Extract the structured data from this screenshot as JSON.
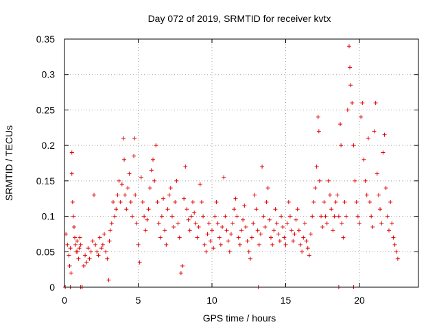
{
  "chart_data": {
    "type": "scatter",
    "title": "Day 072 of 2019, SRMTID for receiver kvtx",
    "xlabel": "GPS time / hours",
    "ylabel": "SRMTID / TECUs",
    "xlim": [
      0,
      24
    ],
    "ylim": [
      0,
      0.35
    ],
    "xticks": [
      0,
      5,
      10,
      15,
      20
    ],
    "xtick_labels": [
      "0",
      "5",
      "10",
      "15",
      "20"
    ],
    "yticks": [
      0,
      0.05,
      0.1,
      0.15,
      0.2,
      0.25,
      0.3,
      0.35
    ],
    "ytick_labels": [
      "0",
      "0.05",
      "0.1",
      "0.15",
      "0.2",
      "0.25",
      "0.3",
      "0.35"
    ],
    "grid": true,
    "marker": "+",
    "color": "#e00000",
    "series": [
      {
        "name": "SRMTID",
        "points": [
          [
            0.1,
            0.075
          ],
          [
            0.2,
            0.06
          ],
          [
            0.3,
            0.045
          ],
          [
            0.35,
            0.03
          ],
          [
            0.4,
            0.055
          ],
          [
            0.45,
            0.02
          ],
          [
            0.5,
            0.19
          ],
          [
            0.5,
            0.16
          ],
          [
            0.55,
            0.12
          ],
          [
            0.6,
            0.1
          ],
          [
            0.65,
            0.085
          ],
          [
            0.7,
            0.07
          ],
          [
            0.75,
            0.06
          ],
          [
            0.8,
            0.05
          ],
          [
            0.85,
            0.065
          ],
          [
            0.9,
            0.05
          ],
          [
            0.95,
            0.04
          ],
          [
            1.0,
            0.055
          ],
          [
            1.05,
            0.07
          ],
          [
            1.1,
            0.06
          ],
          [
            1.3,
            0.03
          ],
          [
            1.4,
            0.045
          ],
          [
            1.5,
            0.035
          ],
          [
            1.6,
            0.055
          ],
          [
            1.7,
            0.04
          ],
          [
            1.8,
            0.05
          ],
          [
            1.9,
            0.065
          ],
          [
            2.0,
            0.13
          ],
          [
            2.1,
            0.06
          ],
          [
            2.2,
            0.05
          ],
          [
            2.3,
            0.045
          ],
          [
            2.4,
            0.07
          ],
          [
            2.5,
            0.055
          ],
          [
            2.6,
            0.06
          ],
          [
            2.7,
            0.075
          ],
          [
            2.8,
            0.05
          ],
          [
            2.9,
            0.04
          ],
          [
            3.0,
            0.01
          ],
          [
            3.05,
            0.065
          ],
          [
            3.1,
            0.08
          ],
          [
            3.2,
            0.09
          ],
          [
            3.3,
            0.12
          ],
          [
            3.4,
            0.1
          ],
          [
            3.5,
            0.11
          ],
          [
            3.6,
            0.13
          ],
          [
            3.7,
            0.15
          ],
          [
            3.8,
            0.12
          ],
          [
            3.9,
            0.145
          ],
          [
            4.0,
            0.21
          ],
          [
            4.05,
            0.18
          ],
          [
            4.1,
            0.13
          ],
          [
            4.2,
            0.11
          ],
          [
            4.3,
            0.14
          ],
          [
            4.4,
            0.16
          ],
          [
            4.5,
            0.12
          ],
          [
            4.6,
            0.1
          ],
          [
            4.7,
            0.185
          ],
          [
            4.75,
            0.21
          ],
          [
            4.8,
            0.13
          ],
          [
            4.9,
            0.09
          ],
          [
            5.0,
            0.06
          ],
          [
            5.1,
            0.035
          ],
          [
            5.2,
            0.155
          ],
          [
            5.3,
            0.12
          ],
          [
            5.4,
            0.1
          ],
          [
            5.5,
            0.08
          ],
          [
            5.6,
            0.095
          ],
          [
            5.7,
            0.11
          ],
          [
            5.8,
            0.14
          ],
          [
            5.9,
            0.165
          ],
          [
            6.0,
            0.18
          ],
          [
            6.1,
            0.15
          ],
          [
            6.2,
            0.2
          ],
          [
            6.3,
            0.12
          ],
          [
            6.4,
            0.09
          ],
          [
            6.5,
            0.07
          ],
          [
            6.6,
            0.1
          ],
          [
            6.7,
            0.125
          ],
          [
            6.8,
            0.08
          ],
          [
            6.9,
            0.06
          ],
          [
            7.0,
            0.11
          ],
          [
            7.1,
            0.13
          ],
          [
            7.2,
            0.14
          ],
          [
            7.3,
            0.1
          ],
          [
            7.4,
            0.085
          ],
          [
            7.5,
            0.12
          ],
          [
            7.6,
            0.15
          ],
          [
            7.7,
            0.09
          ],
          [
            7.8,
            0.07
          ],
          [
            7.9,
            0.02
          ],
          [
            8.0,
            0.03
          ],
          [
            8.1,
            0.125
          ],
          [
            8.2,
            0.17
          ],
          [
            8.3,
            0.11
          ],
          [
            8.4,
            0.095
          ],
          [
            8.5,
            0.08
          ],
          [
            8.6,
            0.1
          ],
          [
            8.7,
            0.12
          ],
          [
            8.8,
            0.105
          ],
          [
            8.9,
            0.09
          ],
          [
            9.0,
            0.07
          ],
          [
            9.1,
            0.085
          ],
          [
            9.2,
            0.145
          ],
          [
            9.3,
            0.12
          ],
          [
            9.4,
            0.1
          ],
          [
            9.5,
            0.06
          ],
          [
            9.6,
            0.05
          ],
          [
            9.7,
            0.075
          ],
          [
            9.8,
            0.09
          ],
          [
            9.9,
            0.065
          ],
          [
            10.0,
            0.08
          ],
          [
            10.1,
            0.055
          ],
          [
            10.2,
            0.1
          ],
          [
            10.3,
            0.12
          ],
          [
            10.4,
            0.09
          ],
          [
            10.5,
            0.07
          ],
          [
            10.6,
            0.06
          ],
          [
            10.7,
            0.085
          ],
          [
            10.8,
            0.155
          ],
          [
            10.9,
            0.1
          ],
          [
            11.0,
            0.08
          ],
          [
            11.1,
            0.065
          ],
          [
            11.2,
            0.05
          ],
          [
            11.3,
            0.075
          ],
          [
            11.4,
            0.09
          ],
          [
            11.5,
            0.11
          ],
          [
            11.6,
            0.125
          ],
          [
            11.7,
            0.1
          ],
          [
            11.8,
            0.07
          ],
          [
            11.9,
            0.06
          ],
          [
            12.0,
            0.08
          ],
          [
            12.1,
            0.095
          ],
          [
            12.2,
            0.115
          ],
          [
            12.3,
            0.085
          ],
          [
            12.4,
            0.065
          ],
          [
            12.5,
            0.05
          ],
          [
            12.6,
            0.04
          ],
          [
            12.7,
            0.07
          ],
          [
            12.8,
            0.09
          ],
          [
            12.9,
            0.13
          ],
          [
            13.0,
            0.11
          ],
          [
            13.1,
            0.08
          ],
          [
            13.2,
            0.06
          ],
          [
            13.3,
            0.075
          ],
          [
            13.4,
            0.17
          ],
          [
            13.5,
            0.1
          ],
          [
            13.6,
            0.085
          ],
          [
            13.7,
            0.12
          ],
          [
            13.8,
            0.14
          ],
          [
            13.9,
            0.095
          ],
          [
            14.0,
            0.07
          ],
          [
            14.1,
            0.06
          ],
          [
            14.2,
            0.08
          ],
          [
            14.3,
            0.11
          ],
          [
            14.4,
            0.09
          ],
          [
            14.5,
            0.075
          ],
          [
            14.6,
            0.065
          ],
          [
            14.7,
            0.1
          ],
          [
            14.8,
            0.085
          ],
          [
            14.9,
            0.07
          ],
          [
            15.0,
            0.06
          ],
          [
            15.1,
            0.09
          ],
          [
            15.2,
            0.12
          ],
          [
            15.3,
            0.1
          ],
          [
            15.4,
            0.08
          ],
          [
            15.5,
            0.065
          ],
          [
            15.6,
            0.075
          ],
          [
            15.7,
            0.095
          ],
          [
            15.8,
            0.11
          ],
          [
            15.9,
            0.08
          ],
          [
            16.0,
            0.06
          ],
          [
            16.1,
            0.05
          ],
          [
            16.2,
            0.07
          ],
          [
            16.3,
            0.09
          ],
          [
            16.4,
            0.065
          ],
          [
            16.5,
            0.055
          ],
          [
            16.6,
            0.045
          ],
          [
            16.7,
            0.075
          ],
          [
            16.8,
            0.1
          ],
          [
            16.9,
            0.12
          ],
          [
            17.0,
            0.14
          ],
          [
            17.1,
            0.17
          ],
          [
            17.2,
            0.24
          ],
          [
            17.25,
            0.22
          ],
          [
            17.3,
            0.15
          ],
          [
            17.4,
            0.1
          ],
          [
            17.5,
            0.085
          ],
          [
            17.6,
            0.12
          ],
          [
            17.7,
            0.1
          ],
          [
            17.8,
            0.09
          ],
          [
            17.9,
            0.15
          ],
          [
            18.0,
            0.13
          ],
          [
            18.1,
            0.11
          ],
          [
            18.2,
            0.08
          ],
          [
            18.3,
            0.1
          ],
          [
            18.4,
            0.12
          ],
          [
            18.5,
            0.13
          ],
          [
            18.6,
            0.1
          ],
          [
            18.7,
            0.23
          ],
          [
            18.75,
            0.2
          ],
          [
            18.8,
            0.09
          ],
          [
            18.9,
            0.07
          ],
          [
            19.0,
            0.12
          ],
          [
            19.1,
            0.1
          ],
          [
            19.2,
            0.25
          ],
          [
            19.3,
            0.34
          ],
          [
            19.35,
            0.31
          ],
          [
            19.4,
            0.285
          ],
          [
            19.5,
            0.26
          ],
          [
            19.6,
            0.2
          ],
          [
            19.7,
            0.15
          ],
          [
            19.8,
            0.12
          ],
          [
            19.9,
            0.1
          ],
          [
            20.0,
            0.09
          ],
          [
            20.1,
            0.24
          ],
          [
            20.2,
            0.26
          ],
          [
            20.3,
            0.18
          ],
          [
            20.4,
            0.15
          ],
          [
            20.5,
            0.13
          ],
          [
            20.6,
            0.21
          ],
          [
            20.7,
            0.12
          ],
          [
            20.8,
            0.1
          ],
          [
            20.9,
            0.085
          ],
          [
            21.0,
            0.22
          ],
          [
            21.1,
            0.26
          ],
          [
            21.2,
            0.16
          ],
          [
            21.3,
            0.13
          ],
          [
            21.4,
            0.11
          ],
          [
            21.5,
            0.09
          ],
          [
            21.6,
            0.19
          ],
          [
            21.7,
            0.215
          ],
          [
            21.8,
            0.14
          ],
          [
            21.9,
            0.1
          ],
          [
            22.0,
            0.08
          ],
          [
            22.1,
            0.12
          ],
          [
            22.2,
            0.09
          ],
          [
            22.3,
            0.07
          ],
          [
            22.4,
            0.06
          ],
          [
            22.5,
            0.05
          ],
          [
            22.6,
            0.04
          ],
          [
            0.05,
            0.0
          ],
          [
            0.4,
            0.0
          ],
          [
            1.1,
            0.0
          ],
          [
            1.2,
            0.0
          ],
          [
            13.15,
            0.0
          ],
          [
            18.6,
            0.0
          ],
          [
            19.6,
            0.0
          ]
        ]
      }
    ]
  }
}
